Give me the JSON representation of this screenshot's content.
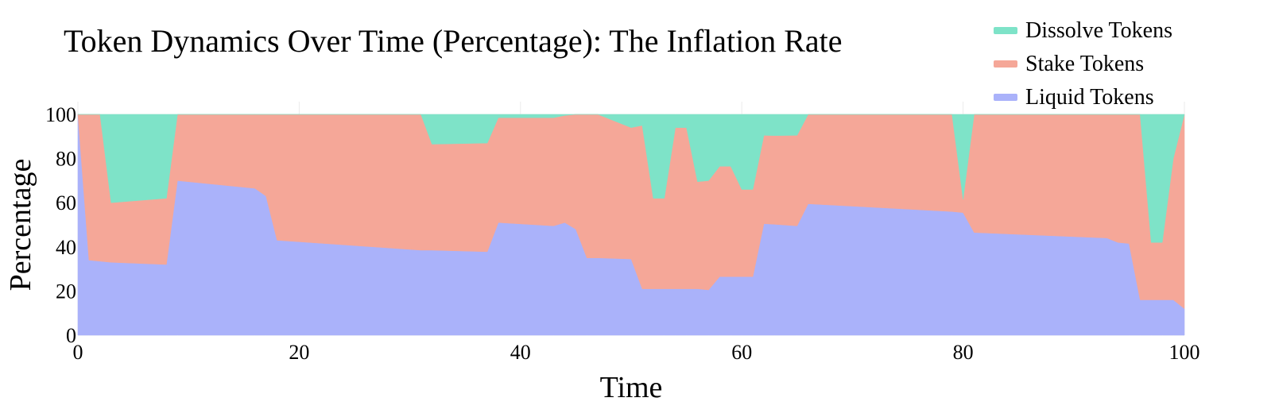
{
  "chart_data": {
    "type": "area",
    "title": "Token Dynamics Over Time (Percentage): The Inflation Rate",
    "xlabel": "Time",
    "ylabel": "Percentage",
    "xlim": [
      0,
      100
    ],
    "ylim": [
      0,
      100
    ],
    "x_ticks": [
      0,
      20,
      40,
      60,
      80,
      100
    ],
    "y_ticks": [
      0,
      20,
      40,
      60,
      80,
      100
    ],
    "stacked": true,
    "grid": true,
    "legend_position": "top-right",
    "x": [
      0,
      1,
      2,
      3,
      8,
      9,
      16,
      17,
      18,
      31,
      32,
      37,
      38,
      43,
      44,
      45,
      46,
      47,
      50,
      51,
      52,
      53,
      54,
      55,
      56,
      57,
      58,
      59,
      60,
      61,
      62,
      63,
      65,
      66,
      79,
      80,
      81,
      93,
      94,
      95,
      96,
      97,
      98,
      99,
      100
    ],
    "series": [
      {
        "name": "Liquid Tokens",
        "color": "#aab2fa",
        "values": [
          100,
          34,
          33.5,
          33,
          32,
          70,
          66.5,
          63,
          43,
          38.5,
          38.5,
          37.8,
          51,
          49.5,
          51,
          48,
          35,
          35,
          34.5,
          21,
          21,
          21,
          21,
          21,
          21,
          20.5,
          26.5,
          26.5,
          26.5,
          26.5,
          50.5,
          50.2,
          49.5,
          59.5,
          56,
          55.5,
          46.5,
          44,
          42,
          41.5,
          16,
          16,
          16,
          16,
          12
        ]
      },
      {
        "name": "Stake Tokens",
        "color": "#f5a798",
        "values": [
          0,
          66,
          66.5,
          27,
          30,
          30,
          33.5,
          37,
          57,
          61.5,
          48,
          49.2,
          47.5,
          49,
          48.5,
          52,
          65,
          65,
          59.5,
          74,
          41,
          41,
          73,
          73,
          48.5,
          49.5,
          50,
          50,
          39.5,
          39.5,
          40,
          40.2,
          41,
          40.5,
          44,
          6,
          53.5,
          56,
          58,
          58.5,
          84,
          26,
          26,
          64,
          88
        ]
      },
      {
        "name": "Dissolve Tokens",
        "color": "#7ee3c8",
        "values": [
          0,
          0,
          0,
          40,
          38,
          0,
          0,
          0,
          0,
          0,
          13.5,
          13,
          1.5,
          1.5,
          0.5,
          0,
          0,
          0,
          6,
          5,
          38,
          38,
          6,
          6,
          30.5,
          30,
          23.5,
          23.5,
          34,
          34,
          9.5,
          9.6,
          9.5,
          0,
          0,
          38.5,
          0,
          0,
          0,
          0,
          0,
          58,
          58,
          20,
          0
        ]
      }
    ]
  }
}
